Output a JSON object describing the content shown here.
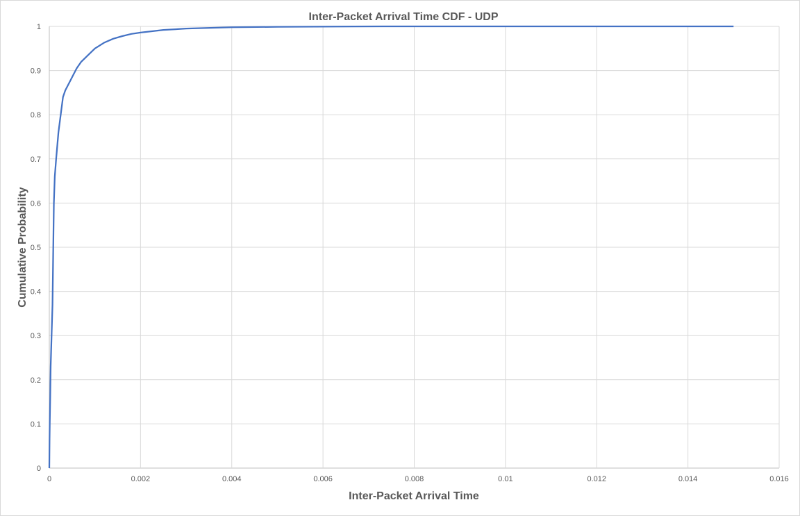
{
  "chart_data": {
    "type": "line",
    "title": "Inter-Packet Arrival Time CDF - UDP",
    "xlabel": "Inter-Packet Arrival Time",
    "ylabel": "Cumulative Probability",
    "xlim": [
      0,
      0.016
    ],
    "ylim": [
      0,
      1
    ],
    "x_ticks": [
      "0",
      "0.002",
      "0.004",
      "0.006",
      "0.008",
      "0.01",
      "0.012",
      "0.014",
      "0.016"
    ],
    "y_ticks": [
      "0",
      "0.1",
      "0.2",
      "0.3",
      "0.4",
      "0.5",
      "0.6",
      "0.7",
      "0.8",
      "0.9",
      "1"
    ],
    "grid": true,
    "legend": "none",
    "series": [
      {
        "color": "#4472c4",
        "x": [
          0,
          5e-06,
          1e-05,
          2e-05,
          3e-05,
          5e-05,
          7e-05,
          0.0001,
          0.00012,
          0.00015,
          0.0002,
          0.00025,
          0.0003,
          0.00035,
          0.0004,
          0.0005,
          0.0006,
          0.0007,
          0.0008,
          0.001,
          0.0012,
          0.0014,
          0.0016,
          0.0018,
          0.002,
          0.0025,
          0.003,
          0.004,
          0.005,
          0.0073,
          0.01,
          0.015
        ],
        "y": [
          0,
          0.06,
          0.1,
          0.16,
          0.23,
          0.3,
          0.37,
          0.6,
          0.66,
          0.7,
          0.76,
          0.8,
          0.84,
          0.855,
          0.865,
          0.885,
          0.905,
          0.92,
          0.93,
          0.95,
          0.963,
          0.972,
          0.978,
          0.983,
          0.986,
          0.992,
          0.995,
          0.998,
          0.999,
          1.0,
          1.0,
          1.0
        ]
      }
    ]
  }
}
